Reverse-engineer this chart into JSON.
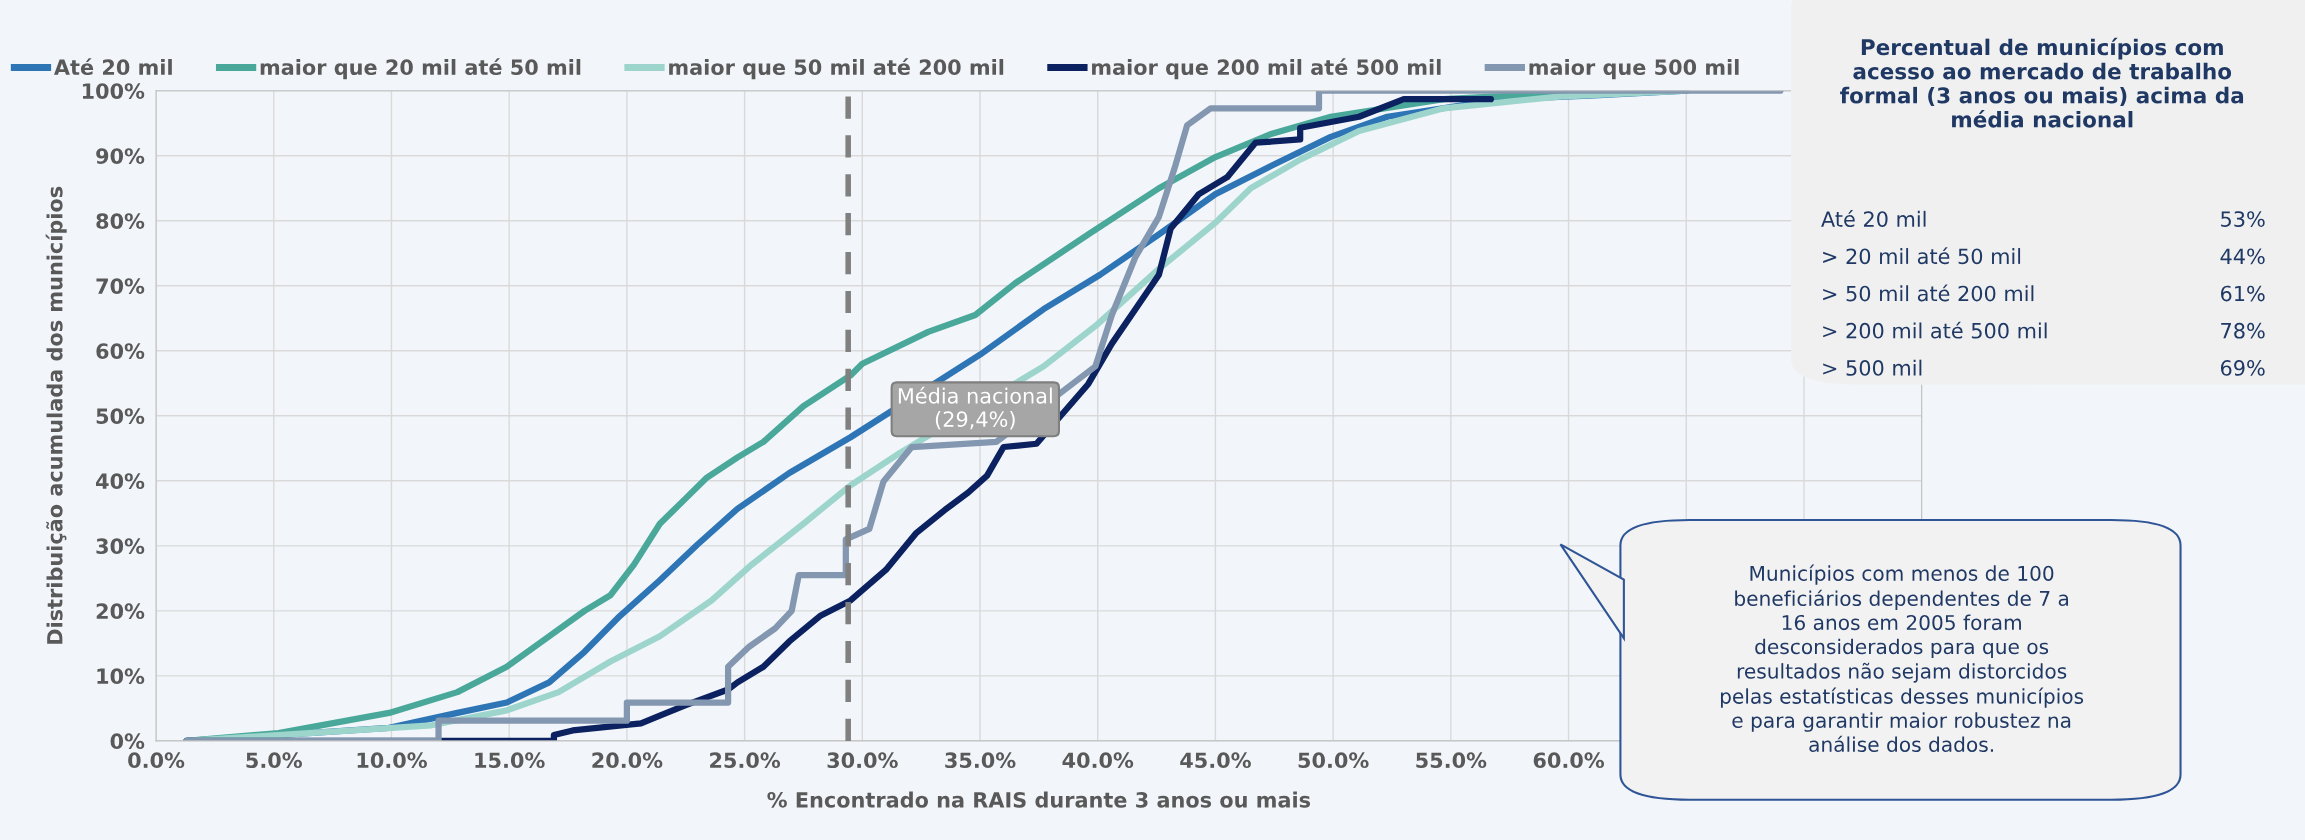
{
  "chart_data": {
    "type": "line",
    "xlabel": "% Encontrado na RAIS durante 3 anos ou mais",
    "ylabel": "Distribuição acumulada dos municípios",
    "xlim": [
      0,
      75
    ],
    "ylim": [
      0,
      100
    ],
    "xticks": [
      {
        "value": 0,
        "label": "0.0%"
      },
      {
        "value": 5,
        "label": "5.0%"
      },
      {
        "value": 10,
        "label": "10.0%"
      },
      {
        "value": 15,
        "label": "15.0%"
      },
      {
        "value": 20,
        "label": "20.0%"
      },
      {
        "value": 25,
        "label": "25.0%"
      },
      {
        "value": 30,
        "label": "30.0%"
      },
      {
        "value": 35,
        "label": "35.0%"
      },
      {
        "value": 40,
        "label": "40.0%"
      },
      {
        "value": 45,
        "label": "45.0%"
      },
      {
        "value": 50,
        "label": "50.0%"
      },
      {
        "value": 55,
        "label": "55.0%"
      },
      {
        "value": 60,
        "label": "60.0%"
      },
      {
        "value": 65,
        "label": null
      },
      {
        "value": 70,
        "label": null
      },
      {
        "value": 75,
        "label": null
      }
    ],
    "yticks": [
      {
        "value": 0,
        "label": "0%"
      },
      {
        "value": 10,
        "label": "10%"
      },
      {
        "value": 20,
        "label": "20%"
      },
      {
        "value": 30,
        "label": "30%"
      },
      {
        "value": 40,
        "label": "40%"
      },
      {
        "value": 50,
        "label": "50%"
      },
      {
        "value": 60,
        "label": "60%"
      },
      {
        "value": 70,
        "label": "70%"
      },
      {
        "value": 80,
        "label": "80%"
      },
      {
        "value": 90,
        "label": "90%"
      },
      {
        "value": 100,
        "label": "100%"
      }
    ],
    "grid": true,
    "legend": "top",
    "marker": "none",
    "line_style": "solid",
    "series": [
      {
        "name": "Até 20 mil",
        "color": "#2e75b6",
        "x": [
          1.3,
          9.9,
          12.8,
          14.9,
          16.7,
          18.2,
          19.7,
          21.4,
          23,
          24.7,
          26.9,
          29.5,
          35,
          37.7,
          40.1,
          42.6,
          45,
          47.4,
          49.9,
          52.3,
          57.2,
          61.1,
          65
        ],
        "values": [
          0,
          2,
          4.3,
          5.9,
          9,
          13.7,
          19.2,
          24.7,
          30.2,
          35.7,
          41.2,
          46.7,
          59.4,
          66.4,
          71.7,
          77.9,
          84.1,
          88.5,
          92.9,
          96,
          98.7,
          99.3,
          100
        ]
      },
      {
        "name": "maior que 20 mil até 50 mil",
        "color": "#4aa89a",
        "x": [
          1.3,
          5.2,
          9.9,
          12.8,
          14.9,
          16.7,
          18.2,
          19.3,
          20.3,
          21.4,
          22.5,
          23.4,
          24.7,
          25.8,
          27.5,
          29.5,
          30,
          32.8,
          34.8,
          36.5,
          39.6,
          42.6,
          45,
          47.4,
          49.9,
          54.7,
          59.6,
          65
        ],
        "values": [
          0,
          1.2,
          4.3,
          7.5,
          11.4,
          16.1,
          20,
          22.4,
          27.1,
          33.4,
          37.3,
          40.5,
          43.6,
          46,
          51.5,
          56.2,
          58,
          62.9,
          65.5,
          70.4,
          77.9,
          85,
          89.8,
          93.4,
          96,
          98.7,
          99.6,
          100
        ]
      },
      {
        "name": "maior que 50 mil até 200 mil",
        "color": "#9dd5cc",
        "x": [
          1.3,
          11.7,
          14.9,
          17.1,
          19.3,
          21.4,
          23.6,
          25.3,
          27.5,
          29.5,
          31.6,
          37.7,
          39.9,
          42.6,
          45,
          46.5,
          48.6,
          51.1,
          54.7,
          59.6,
          65
        ],
        "values": [
          0,
          2.4,
          4.7,
          7.5,
          12.2,
          16.1,
          21.6,
          27.1,
          33.4,
          39.3,
          44.3,
          57.6,
          63.8,
          72.6,
          79.7,
          85,
          89.4,
          93.8,
          97.3,
          99.1,
          100
        ]
      },
      {
        "name": "maior que 200 mil até 500 mil",
        "color": "#0b2160",
        "x": [
          1.3,
          16.9,
          16.9,
          17.7,
          20.6,
          21.4,
          22.5,
          24.3,
          24.7,
          25.8,
          26.9,
          28.2,
          29.5,
          31,
          32.3,
          33.5,
          34.5,
          35.3,
          36,
          37.4,
          39.6,
          40.6,
          41.6,
          42.6,
          43.1,
          44.3,
          45.5,
          46.7,
          48.6,
          48.6,
          51.1,
          53,
          56.7
        ],
        "values": [
          0,
          0,
          0.9,
          1.6,
          2.7,
          3.9,
          5.5,
          7.9,
          9,
          11.4,
          15.3,
          19.2,
          21.6,
          26.3,
          32,
          35.5,
          38.2,
          40.8,
          45.2,
          45.7,
          54.9,
          61.1,
          66.4,
          71.7,
          78.8,
          84.1,
          86.7,
          92,
          92.5,
          94.3,
          96,
          98.7,
          98.7
        ]
      },
      {
        "name": "maior que 500 mil",
        "color": "#8497b0",
        "x": [
          1.3,
          12,
          12,
          20,
          20,
          24.3,
          24.3,
          25.2,
          26.3,
          27,
          27.3,
          29.3,
          29.3,
          30.3,
          30.9,
          32.1,
          35.7,
          39.9,
          40.6,
          41.6,
          42.6,
          43.3,
          43.8,
          44.8,
          49.4,
          49.4,
          69
        ],
        "values": [
          0,
          0,
          3.1,
          3.1,
          5.9,
          5.9,
          11.4,
          14.5,
          17.3,
          20,
          25.5,
          25.5,
          31,
          32.6,
          39.9,
          45.2,
          46,
          57.6,
          65.5,
          74.4,
          80.6,
          88.5,
          94.7,
          97.3,
          97.3,
          100,
          100
        ]
      }
    ],
    "ref_lines": [
      {
        "axis": "x",
        "value": 29.4,
        "label": "Média nacional\n(29,4%)",
        "color": "#808080",
        "line_style": "dashed"
      }
    ],
    "annotations": [
      "Percentual de municípios com\nacesso ao mercado de trabalho\nformal (3 anos ou mais) acima da\nmédia nacional",
      "Até 20 mil",
      "53%",
      "> 20 mil até 50 mil",
      "44%",
      "> 50 mil até 200 mil",
      "61%",
      "> 200 mil até 500 mil",
      "78%",
      "> 500 mil",
      "69%",
      "Municípios com menos de 100\nbeneficiários dependentes de 7 a\n16 anos em 2005 foram\ndesconsiderados para que os\nresultados não sejam distorcidos\npelas estatísticas desses municípios\ne para garantir maior robustez na\nanálise dos dados."
    ]
  }
}
